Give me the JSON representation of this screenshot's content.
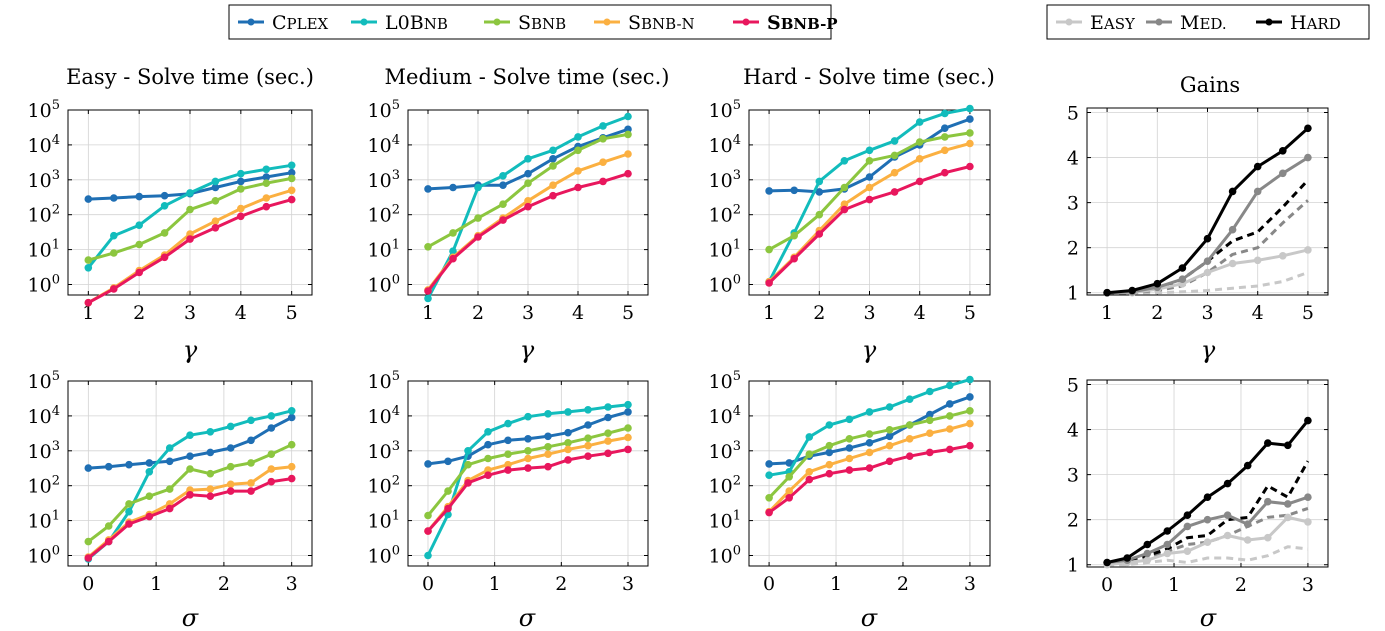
{
  "legend_solvers": {
    "entries": [
      {
        "name": "Cplex",
        "color": "#1f6fb4"
      },
      {
        "name": "L0bnb",
        "color": "#12bcbc"
      },
      {
        "name": "Sbnb",
        "color": "#8cc63f"
      },
      {
        "name": "Sbnb-N",
        "color": "#fbb041"
      },
      {
        "name": "Sbnb-P",
        "color": "#e8175d",
        "bold": true
      }
    ]
  },
  "legend_gains": {
    "entries": [
      {
        "name": "Easy",
        "color": "#c8c8c8"
      },
      {
        "name": "Med.",
        "color": "#888888"
      },
      {
        "name": "Hard",
        "color": "#000000"
      }
    ]
  },
  "column_titles": [
    "Easy - Solve time (sec.)",
    "Medium - Solve time (sec.)",
    "Hard - Solve time (sec.)",
    "Gains"
  ],
  "axis_labels": {
    "gamma": "γ",
    "sigma": "σ"
  },
  "chart_data": [
    {
      "id": "easy-gamma",
      "type": "line",
      "title": "Easy - Solve time (sec.)",
      "xlabel": "γ",
      "yscale": "log",
      "ylim": [
        0.5,
        100000
      ],
      "xlim": [
        0.6,
        5.4
      ],
      "x": [
        1,
        1.5,
        2,
        2.5,
        3,
        3.5,
        4,
        4.5,
        5
      ],
      "series": [
        {
          "name": "Cplex",
          "values": [
            280,
            300,
            330,
            350,
            400,
            600,
            900,
            1200,
            1600
          ]
        },
        {
          "name": "L0bnb",
          "values": [
            3,
            25,
            50,
            180,
            420,
            900,
            1500,
            2000,
            2600
          ]
        },
        {
          "name": "Sbnb",
          "values": [
            5,
            8,
            14,
            30,
            140,
            250,
            550,
            800,
            1100
          ]
        },
        {
          "name": "Sbnb-N",
          "values": [
            0.3,
            0.8,
            2.5,
            7,
            28,
            65,
            150,
            300,
            500
          ]
        },
        {
          "name": "Sbnb-P",
          "values": [
            0.3,
            0.75,
            2.2,
            6,
            20,
            42,
            90,
            170,
            270
          ]
        }
      ]
    },
    {
      "id": "medium-gamma",
      "type": "line",
      "title": "Medium - Solve time (sec.)",
      "xlabel": "γ",
      "yscale": "log",
      "ylim": [
        0.5,
        100000
      ],
      "xlim": [
        0.6,
        5.4
      ],
      "x": [
        1,
        1.5,
        2,
        2.5,
        3,
        3.5,
        4,
        4.5,
        5
      ],
      "series": [
        {
          "name": "Cplex",
          "values": [
            550,
            600,
            700,
            700,
            1500,
            4000,
            9000,
            16000,
            28000
          ]
        },
        {
          "name": "L0bnb",
          "values": [
            0.4,
            9,
            600,
            1300,
            4000,
            7000,
            17000,
            35000,
            65000
          ]
        },
        {
          "name": "Sbnb",
          "values": [
            12,
            30,
            80,
            200,
            800,
            2500,
            7000,
            15000,
            20000
          ]
        },
        {
          "name": "Sbnb-N",
          "values": [
            0.7,
            6,
            25,
            80,
            250,
            700,
            1800,
            3200,
            5500
          ]
        },
        {
          "name": "Sbnb-P",
          "values": [
            0.65,
            5.5,
            23,
            70,
            170,
            350,
            600,
            900,
            1500
          ]
        }
      ]
    },
    {
      "id": "hard-gamma",
      "type": "line",
      "title": "Hard - Solve time (sec.)",
      "xlabel": "γ",
      "yscale": "log",
      "ylim": [
        0.5,
        100000
      ],
      "xlim": [
        0.6,
        5.4
      ],
      "x": [
        1,
        1.5,
        2,
        2.5,
        3,
        3.5,
        4,
        4.5,
        5
      ],
      "series": [
        {
          "name": "Cplex",
          "values": [
            480,
            500,
            450,
            550,
            1200,
            4500,
            10000,
            30000,
            55000
          ]
        },
        {
          "name": "L0bnb",
          "values": [
            1.2,
            30,
            900,
            3500,
            7000,
            13000,
            45000,
            80000,
            110000
          ]
        },
        {
          "name": "Sbnb",
          "values": [
            10,
            25,
            100,
            600,
            3500,
            5000,
            12000,
            17000,
            22000
          ]
        },
        {
          "name": "Sbnb-N",
          "values": [
            1.2,
            6,
            35,
            200,
            600,
            1600,
            4000,
            7000,
            11000
          ]
        },
        {
          "name": "Sbnb-P",
          "values": [
            1.1,
            5.5,
            28,
            140,
            270,
            450,
            900,
            1600,
            2400
          ]
        }
      ]
    },
    {
      "id": "gains-gamma",
      "type": "line",
      "title": "Gains",
      "xlabel": "γ",
      "yscale": "linear",
      "ylim": [
        0.95,
        5.1
      ],
      "xlim": [
        0.6,
        5.4
      ],
      "x": [
        1,
        1.5,
        2,
        2.5,
        3,
        3.5,
        4,
        4.5,
        5
      ],
      "series": [
        {
          "name": "Easy",
          "style": "solid",
          "values": [
            1.0,
            1.0,
            1.08,
            1.2,
            1.45,
            1.65,
            1.72,
            1.82,
            1.95
          ]
        },
        {
          "name": "Med.",
          "style": "solid",
          "values": [
            1.0,
            1.02,
            1.12,
            1.3,
            1.7,
            2.4,
            3.25,
            3.65,
            4.0
          ]
        },
        {
          "name": "Hard",
          "style": "solid",
          "values": [
            1.0,
            1.05,
            1.2,
            1.55,
            2.2,
            3.25,
            3.8,
            4.15,
            4.65
          ]
        },
        {
          "name": "Easy",
          "style": "dashed",
          "values": [
            1.0,
            1.0,
            1.0,
            1.02,
            1.05,
            1.1,
            1.15,
            1.25,
            1.45
          ]
        },
        {
          "name": "Med.",
          "style": "dashed",
          "values": [
            1.0,
            1.0,
            1.05,
            1.15,
            1.45,
            1.85,
            2.0,
            2.55,
            3.05
          ]
        },
        {
          "name": "Hard",
          "style": "dashed",
          "values": [
            1.0,
            1.0,
            1.1,
            1.3,
            1.7,
            2.15,
            2.35,
            2.9,
            3.5
          ]
        }
      ]
    },
    {
      "id": "easy-sigma",
      "type": "line",
      "xlabel": "σ",
      "yscale": "log",
      "ylim": [
        0.5,
        100000
      ],
      "xlim": [
        -0.3,
        3.3
      ],
      "x": [
        0,
        0.3,
        0.6,
        0.9,
        1.2,
        1.5,
        1.8,
        2.1,
        2.4,
        2.7,
        3.0
      ],
      "series": [
        {
          "name": "Cplex",
          "values": [
            320,
            350,
            400,
            450,
            500,
            700,
            900,
            1200,
            2000,
            4500,
            9000
          ]
        },
        {
          "name": "L0bnb",
          "values": [
            0.8,
            2.5,
            18,
            250,
            1200,
            2800,
            3500,
            5000,
            7500,
            10000,
            14000
          ]
        },
        {
          "name": "Sbnb",
          "values": [
            2.5,
            7,
            30,
            50,
            80,
            300,
            220,
            350,
            450,
            800,
            1500
          ]
        },
        {
          "name": "Sbnb-N",
          "values": [
            0.9,
            2.8,
            9,
            15,
            30,
            75,
            80,
            110,
            120,
            300,
            350
          ]
        },
        {
          "name": "Sbnb-P",
          "values": [
            0.85,
            2.5,
            8,
            13,
            22,
            55,
            50,
            70,
            70,
            130,
            160
          ]
        }
      ]
    },
    {
      "id": "medium-sigma",
      "type": "line",
      "xlabel": "σ",
      "yscale": "log",
      "ylim": [
        0.5,
        100000
      ],
      "xlim": [
        -0.3,
        3.3
      ],
      "x": [
        0,
        0.3,
        0.6,
        0.9,
        1.2,
        1.5,
        1.8,
        2.1,
        2.4,
        2.7,
        3.0
      ],
      "series": [
        {
          "name": "Cplex",
          "values": [
            420,
            500,
            700,
            1500,
            2000,
            2200,
            2600,
            3300,
            5500,
            9000,
            13000
          ]
        },
        {
          "name": "L0bnb",
          "values": [
            1,
            15,
            1000,
            3500,
            6000,
            9500,
            11500,
            13000,
            15000,
            18000,
            21000
          ]
        },
        {
          "name": "Sbnb",
          "values": [
            14,
            70,
            400,
            600,
            800,
            1000,
            1300,
            1700,
            2300,
            3200,
            4500
          ]
        },
        {
          "name": "Sbnb-N",
          "values": [
            5,
            25,
            140,
            280,
            400,
            600,
            800,
            1100,
            1400,
            1900,
            2400
          ]
        },
        {
          "name": "Sbnb-P",
          "values": [
            5,
            22,
            120,
            200,
            280,
            320,
            350,
            550,
            700,
            850,
            1100
          ]
        }
      ]
    },
    {
      "id": "hard-sigma",
      "type": "line",
      "xlabel": "σ",
      "yscale": "log",
      "ylim": [
        0.5,
        100000
      ],
      "xlim": [
        -0.3,
        3.3
      ],
      "x": [
        0,
        0.3,
        0.6,
        0.9,
        1.2,
        1.5,
        1.8,
        2.1,
        2.4,
        2.7,
        3.0
      ],
      "series": [
        {
          "name": "Cplex",
          "values": [
            420,
            450,
            700,
            900,
            1200,
            1700,
            2600,
            5500,
            11000,
            22000,
            35000
          ]
        },
        {
          "name": "L0bnb",
          "values": [
            200,
            250,
            2500,
            5500,
            8000,
            13000,
            18000,
            30000,
            50000,
            75000,
            110000
          ]
        },
        {
          "name": "Sbnb",
          "values": [
            45,
            180,
            800,
            1400,
            2200,
            3000,
            4000,
            5500,
            7500,
            10000,
            14000
          ]
        },
        {
          "name": "Sbnb-N",
          "values": [
            18,
            70,
            250,
            400,
            600,
            900,
            1400,
            2200,
            3200,
            4200,
            6000
          ]
        },
        {
          "name": "Sbnb-P",
          "values": [
            17,
            45,
            150,
            220,
            280,
            320,
            500,
            700,
            900,
            1100,
            1400
          ]
        }
      ]
    },
    {
      "id": "gains-sigma",
      "type": "line",
      "xlabel": "σ",
      "yscale": "linear",
      "ylim": [
        0.95,
        5.1
      ],
      "xlim": [
        -0.3,
        3.3
      ],
      "x": [
        0,
        0.3,
        0.6,
        0.9,
        1.2,
        1.5,
        1.8,
        2.1,
        2.4,
        2.7,
        3.0
      ],
      "series": [
        {
          "name": "Easy",
          "style": "solid",
          "values": [
            1.0,
            1.05,
            1.1,
            1.25,
            1.3,
            1.5,
            1.65,
            1.55,
            1.6,
            2.05,
            1.95
          ]
        },
        {
          "name": "Med.",
          "style": "solid",
          "values": [
            1.05,
            1.1,
            1.25,
            1.45,
            1.85,
            2.0,
            2.1,
            1.9,
            2.4,
            2.35,
            2.5
          ]
        },
        {
          "name": "Hard",
          "style": "solid",
          "values": [
            1.05,
            1.15,
            1.45,
            1.75,
            2.1,
            2.5,
            2.8,
            3.2,
            3.7,
            3.65,
            4.2
          ]
        },
        {
          "name": "Easy",
          "style": "dashed",
          "values": [
            1.0,
            1.0,
            1.05,
            1.1,
            1.05,
            1.15,
            1.15,
            1.1,
            1.2,
            1.4,
            1.35
          ]
        },
        {
          "name": "Med.",
          "style": "dashed",
          "values": [
            1.0,
            1.05,
            1.15,
            1.3,
            1.45,
            1.5,
            1.65,
            1.85,
            2.05,
            2.1,
            2.25
          ]
        },
        {
          "name": "Hard",
          "style": "dashed",
          "values": [
            1.0,
            1.1,
            1.2,
            1.35,
            1.6,
            1.65,
            2.0,
            2.05,
            2.75,
            2.5,
            3.3
          ]
        }
      ]
    }
  ]
}
